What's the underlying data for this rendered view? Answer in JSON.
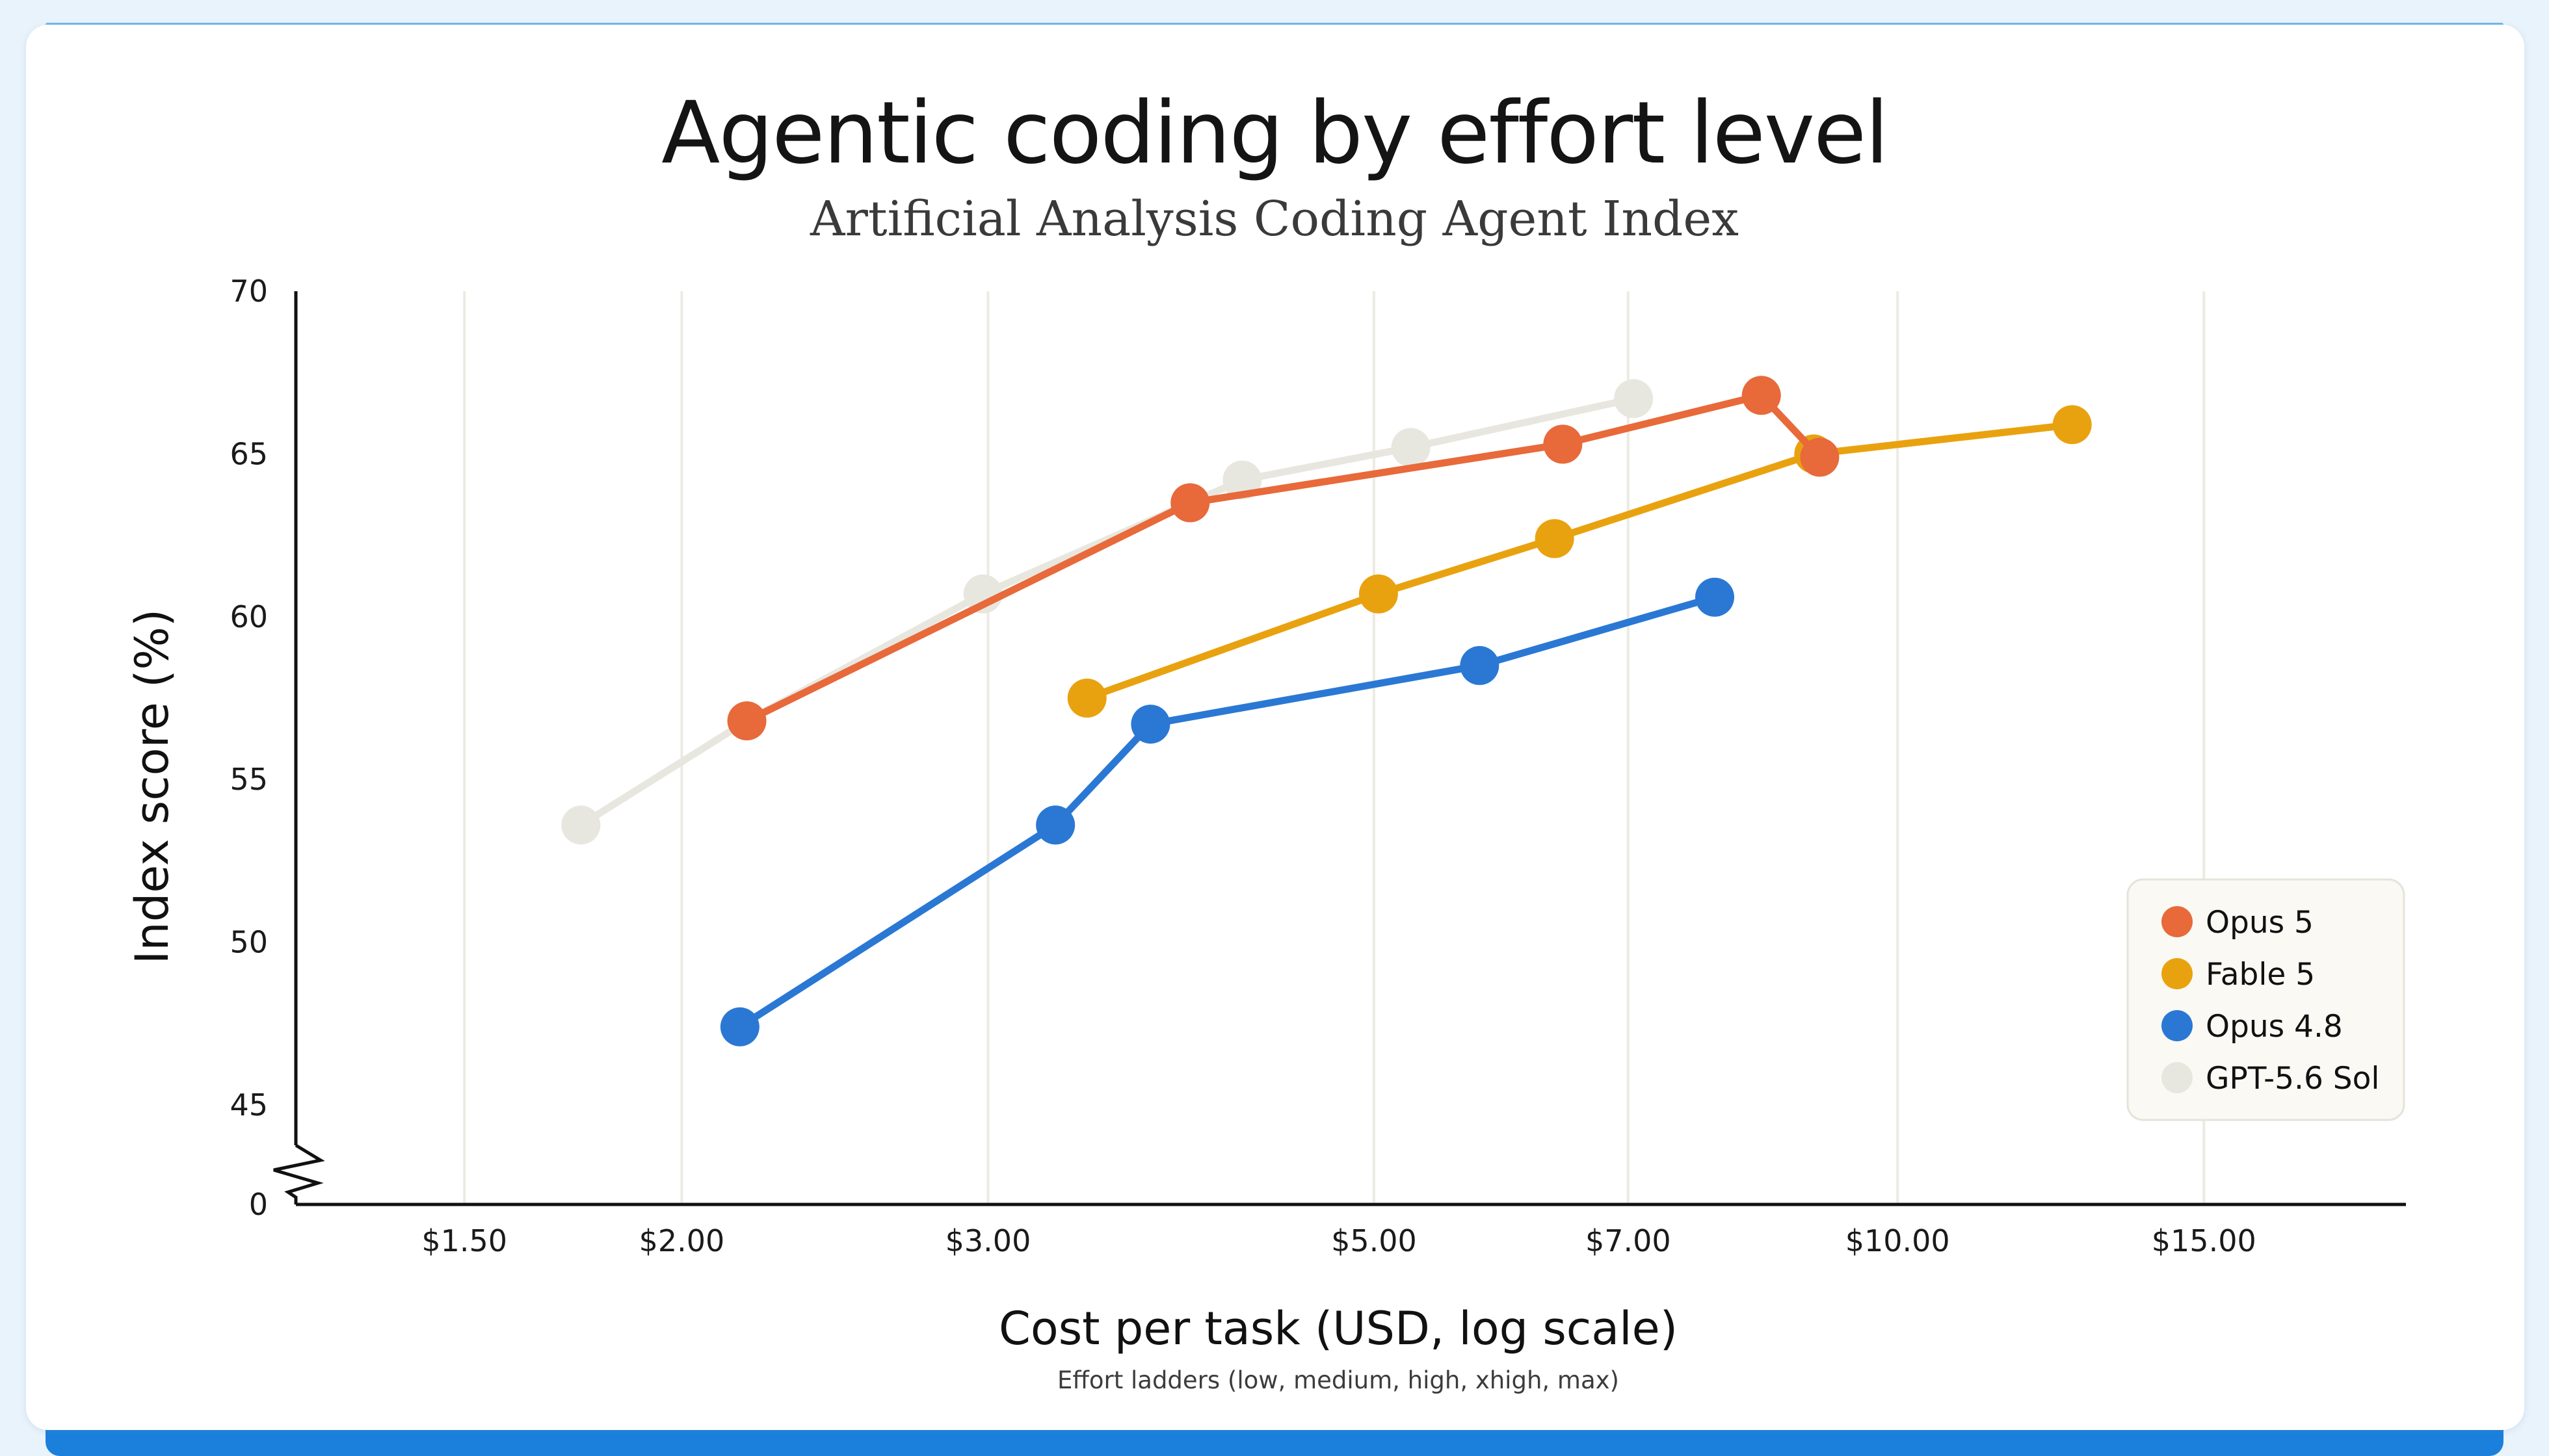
{
  "chart_data": {
    "type": "line",
    "title": "Agentic coding by effort level",
    "subtitle": "Artificial Analysis Coding Agent Index",
    "xlabel": "Cost per task (USD, log scale)",
    "xnote": "Effort ladders (low, medium, high, xhigh, max)",
    "ylabel": "Index score (%)",
    "x_scale": "log",
    "xlim": [
      1.2,
      19.6
    ],
    "ylim": [
      45,
      70
    ],
    "y_axis_break": true,
    "y_break_label": "0",
    "x_ticks": [
      {
        "value": 1.5,
        "label": "$1.50"
      },
      {
        "value": 2.0,
        "label": "$2.00"
      },
      {
        "value": 3.0,
        "label": "$3.00"
      },
      {
        "value": 5.0,
        "label": "$5.00"
      },
      {
        "value": 7.0,
        "label": "$7.00"
      },
      {
        "value": 10.0,
        "label": "$10.00"
      },
      {
        "value": 15.0,
        "label": "$15.00"
      }
    ],
    "y_ticks": [
      {
        "value": 45,
        "label": "45"
      },
      {
        "value": 50,
        "label": "50"
      },
      {
        "value": 55,
        "label": "55"
      },
      {
        "value": 60,
        "label": "60"
      },
      {
        "value": 65,
        "label": "65"
      },
      {
        "value": 70,
        "label": "70"
      }
    ],
    "grid": "vertical",
    "legend_position": "bottom-right",
    "series": [
      {
        "name": "GPT-5.6 Sol",
        "color": "#e8e7df",
        "x": [
          1.75,
          2.18,
          2.98,
          4.2,
          5.25,
          7.05
        ],
        "y": [
          53.6,
          56.8,
          60.7,
          64.2,
          65.2,
          66.7
        ]
      },
      {
        "name": "Fable 5",
        "color": "#e9a20f",
        "x": [
          3.42,
          5.03,
          6.35,
          8.95,
          12.6
        ],
        "y": [
          57.5,
          60.7,
          62.4,
          65.0,
          65.9
        ]
      },
      {
        "name": "Opus 4.8",
        "color": "#2a78d4",
        "x": [
          2.16,
          3.28,
          3.72,
          5.75,
          7.85
        ],
        "y": [
          47.4,
          53.6,
          56.7,
          58.5,
          60.6
        ]
      },
      {
        "name": "Opus 5",
        "color": "#e8693a",
        "x": [
          2.18,
          3.92,
          6.42,
          8.35,
          9.02
        ],
        "y": [
          56.8,
          63.5,
          65.3,
          66.8,
          64.9
        ]
      }
    ],
    "legend_order": [
      "Opus 5",
      "Fable 5",
      "Opus 4.8",
      "GPT-5.6 Sol"
    ]
  }
}
